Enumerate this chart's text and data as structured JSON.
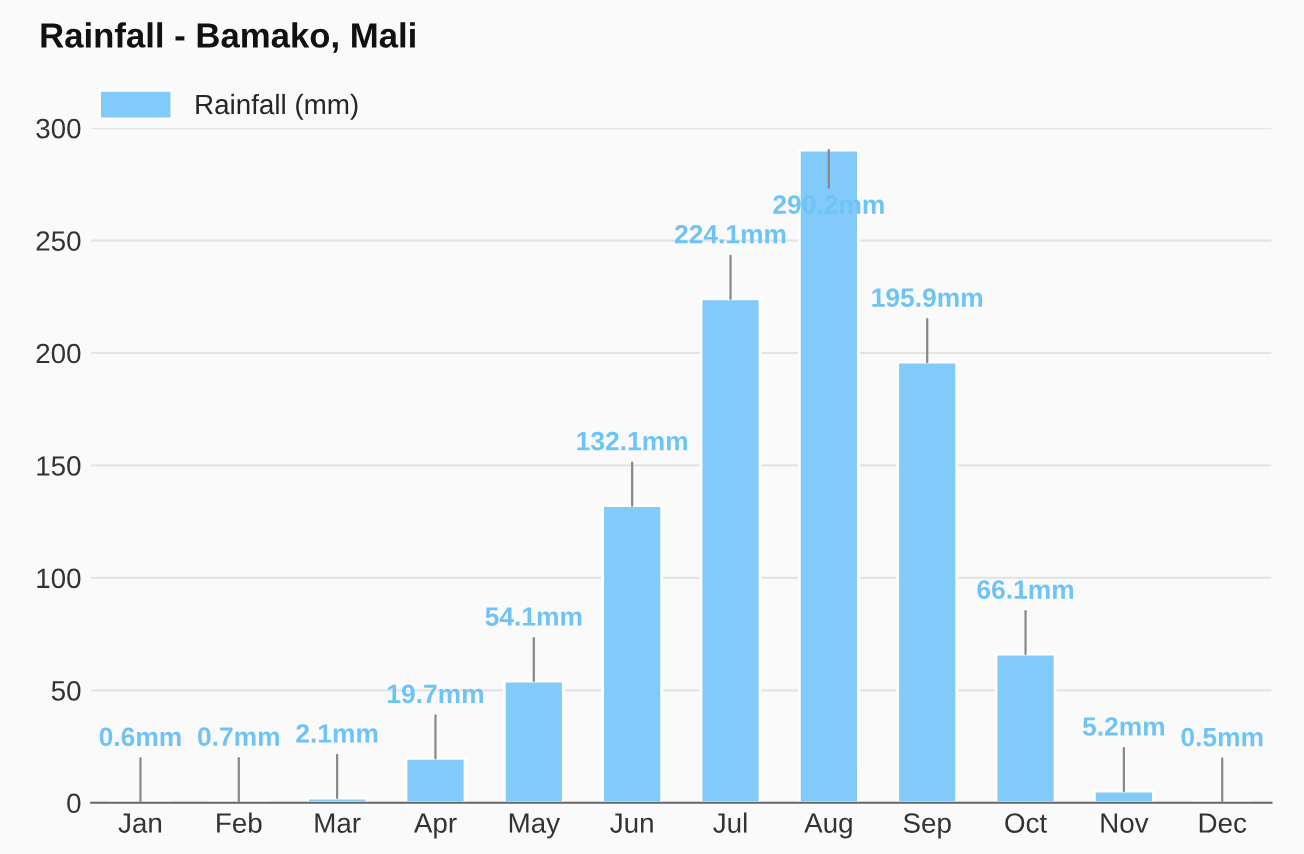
{
  "chart_data": {
    "type": "bar",
    "title": "Rainfall - Bamako, Mali",
    "categories": [
      "Jan",
      "Feb",
      "Mar",
      "Apr",
      "May",
      "Jun",
      "Jul",
      "Aug",
      "Sep",
      "Oct",
      "Nov",
      "Dec"
    ],
    "series": [
      {
        "name": "Rainfall (mm)",
        "color": "#82cafa",
        "values": [
          0.6,
          0.7,
          2.1,
          19.7,
          54.1,
          132.1,
          224.1,
          290.2,
          195.9,
          66.1,
          5.2,
          0.5
        ],
        "value_labels": [
          "0.6mm",
          "0.7mm",
          "2.1mm",
          "19.7mm",
          "54.1mm",
          "132.1mm",
          "224.1mm",
          "290.2mm",
          "195.9mm",
          "66.1mm",
          "5.2mm",
          "0.5mm"
        ]
      }
    ],
    "ylim": [
      0,
      300
    ],
    "yticks": [
      0,
      50,
      100,
      150,
      200,
      250,
      300
    ],
    "grid": "y",
    "legend": "top left"
  }
}
